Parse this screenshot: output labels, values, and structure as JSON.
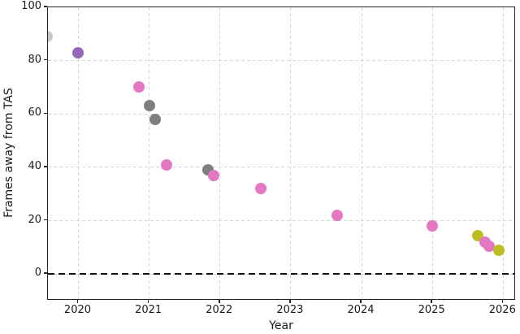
{
  "figure": {
    "background": "#ffffff",
    "spine_color": "#262626",
    "grid_color": "#d8d8d8",
    "text_color": "#1a1a1a"
  },
  "chart_data": {
    "type": "scatter",
    "title": "",
    "xlabel": "Year",
    "ylabel": "Frames away from TAS",
    "xlim": [
      2019.57,
      2026.18
    ],
    "ylim": [
      -10,
      100
    ],
    "xticks": [
      2020,
      2021,
      2022,
      2023,
      2024,
      2025,
      2026
    ],
    "yticks": [
      0,
      20,
      40,
      60,
      80,
      100
    ],
    "grid": true,
    "grid_style": "dashed",
    "legend": false,
    "reference_line": {
      "y": 0,
      "style": "dashed",
      "color": "#111111"
    },
    "marker_diameter_px": 14,
    "point_colors_used": [
      "#c7c7c7",
      "#9467bd",
      "#e377c2",
      "#7f7f7f",
      "#bcbd22"
    ],
    "points": [
      {
        "x": 2019.56,
        "y": 89,
        "color": "#c7c7c7"
      },
      {
        "x": 2020.0,
        "y": 83,
        "color": "#9467bd"
      },
      {
        "x": 2020.85,
        "y": 70,
        "color": "#e377c2"
      },
      {
        "x": 2021.0,
        "y": 63,
        "color": "#7f7f7f"
      },
      {
        "x": 2021.09,
        "y": 58,
        "color": "#7f7f7f"
      },
      {
        "x": 2021.24,
        "y": 41,
        "color": "#e377c2"
      },
      {
        "x": 2021.83,
        "y": 39,
        "color": "#7f7f7f"
      },
      {
        "x": 2021.91,
        "y": 37,
        "color": "#e377c2"
      },
      {
        "x": 2022.58,
        "y": 32,
        "color": "#e377c2"
      },
      {
        "x": 2023.66,
        "y": 22,
        "color": "#e377c2"
      },
      {
        "x": 2025.0,
        "y": 18,
        "color": "#e377c2"
      },
      {
        "x": 2025.64,
        "y": 14.5,
        "color": "#bcbd22"
      },
      {
        "x": 2025.74,
        "y": 12,
        "color": "#e377c2"
      },
      {
        "x": 2025.8,
        "y": 10.5,
        "color": "#e377c2"
      },
      {
        "x": 2025.94,
        "y": 9,
        "color": "#bcbd22"
      }
    ]
  }
}
